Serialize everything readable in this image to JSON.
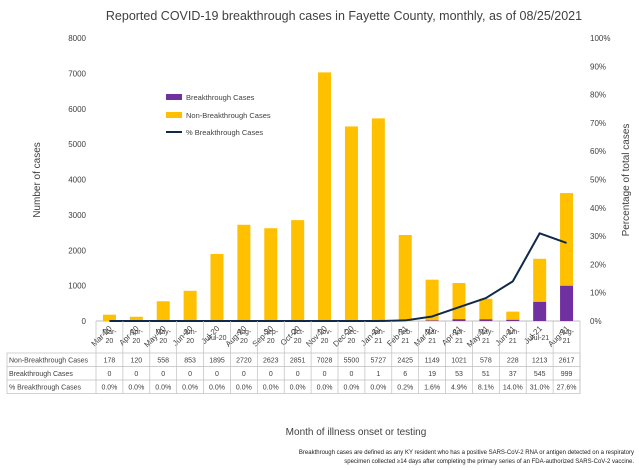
{
  "colors": {
    "breakthrough": "#7030a0",
    "non_breakthrough": "#ffc000",
    "pct_line": "#0f2a48",
    "grid": "#bfbfbf",
    "text": "#404040"
  },
  "note": {
    "line1": "Breakthrough cases are defined as any KY resident who has a positive SARS-CoV-2 RNA or antigen detected on a respiratory",
    "line2": "specimen collected ≥14 days after completing the primary series of an FDA-authorized SARS-CoV-2 vaccine."
  },
  "chart_data": {
    "type": "bar",
    "stacked": true,
    "title": "Reported COVID-19 breakthrough cases in Fayette County, monthly, as of 08/25/2021",
    "xlabel": "Month of illness onset or testing",
    "ylabel": "Number of cases",
    "y2label": "Percentage of total cases",
    "ylim": [
      0,
      8000
    ],
    "y2lim": [
      0,
      100
    ],
    "yticks": [
      "0",
      "1000",
      "2000",
      "3000",
      "4000",
      "5000",
      "6000",
      "7000",
      "8000"
    ],
    "y2ticks": [
      "0%",
      "10%",
      "20%",
      "30%",
      "40%",
      "50%",
      "60%",
      "70%",
      "80%",
      "90%",
      "100%"
    ],
    "categories": [
      "Mar-20",
      "Apr-20",
      "May-20",
      "Jun-20",
      "Jul-20",
      "Aug-20",
      "Sep-20",
      "Oct-20",
      "Nov-20",
      "Dec-20",
      "Jan-21",
      "Feb-21",
      "Mar-21",
      "Apr-21",
      "May-21",
      "Jun-21",
      "Jul-21",
      "Aug-21"
    ],
    "series": [
      {
        "name": "Breakthrough Cases",
        "type": "bar",
        "values": [
          0,
          0,
          0,
          0,
          0,
          0,
          0,
          0,
          0,
          0,
          1,
          6,
          19,
          53,
          51,
          37,
          545,
          999
        ]
      },
      {
        "name": "Non-Breakthrough Cases",
        "type": "bar",
        "values": [
          178,
          120,
          558,
          853,
          1895,
          2720,
          2623,
          2851,
          7028,
          5500,
          5727,
          2425,
          1149,
          1021,
          578,
          228,
          1213,
          2617
        ]
      },
      {
        "name": "% Breakthrough Cases",
        "type": "line",
        "axis": "right",
        "values": [
          0.0,
          0.0,
          0.0,
          0.0,
          0.0,
          0.0,
          0.0,
          0.0,
          0.0,
          0.0,
          0.0,
          0.2,
          1.6,
          4.9,
          8.1,
          14.0,
          31.0,
          27.6
        ]
      }
    ],
    "table": {
      "header_labels": [
        "Mar-\n20",
        "Apr-\n20",
        "May-\n20",
        "Jun-\n20",
        "Jul-20",
        "Aug-\n20",
        "Sep-\n20",
        "Oct-\n20",
        "Nov-\n20",
        "Dec-\n20",
        "Jan-\n21",
        "Feb-\n21",
        "Mar-\n21",
        "Apr-\n21",
        "May-\n21",
        "Jun-\n21",
        "Jul-21",
        "Aug-\n21"
      ],
      "rows": [
        {
          "label": "Non-Breakthrough Cases",
          "cells": [
            "178",
            "120",
            "558",
            "853",
            "1895",
            "2720",
            "2623",
            "2851",
            "7028",
            "5500",
            "5727",
            "2425",
            "1149",
            "1021",
            "578",
            "228",
            "1213",
            "2617"
          ]
        },
        {
          "label": "Breakthrough Cases",
          "cells": [
            "0",
            "0",
            "0",
            "0",
            "0",
            "0",
            "0",
            "0",
            "0",
            "0",
            "1",
            "6",
            "19",
            "53",
            "51",
            "37",
            "545",
            "999"
          ]
        },
        {
          "label": "% Breakthrough Cases",
          "cells": [
            "0.0%",
            "0.0%",
            "0.0%",
            "0.0%",
            "0.0%",
            "0.0%",
            "0.0%",
            "0.0%",
            "0.0%",
            "0.0%",
            "0.0%",
            "0.2%",
            "1.6%",
            "4.9%",
            "8.1%",
            "14.0%",
            "31.0%",
            "27.6%"
          ]
        }
      ]
    },
    "legend_position": "upper-left",
    "grid": false
  }
}
